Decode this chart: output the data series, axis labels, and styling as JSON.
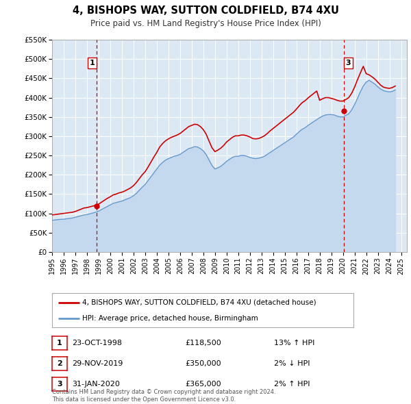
{
  "title": "4, BISHOPS WAY, SUTTON COLDFIELD, B74 4XU",
  "subtitle": "Price paid vs. HM Land Registry's House Price Index (HPI)",
  "background_color": "#ffffff",
  "plot_background_color": "#dce9f5",
  "grid_color": "#ffffff",
  "ylim": [
    0,
    550000
  ],
  "yticks": [
    0,
    50000,
    100000,
    150000,
    200000,
    250000,
    300000,
    350000,
    400000,
    450000,
    500000,
    550000
  ],
  "ytick_labels": [
    "£0",
    "£50K",
    "£100K",
    "£150K",
    "£200K",
    "£250K",
    "£300K",
    "£350K",
    "£400K",
    "£450K",
    "£500K",
    "£550K"
  ],
  "xlim_start": 1995.0,
  "xlim_end": 2025.5,
  "xticks": [
    1995,
    1996,
    1997,
    1998,
    1999,
    2000,
    2001,
    2002,
    2003,
    2004,
    2005,
    2006,
    2007,
    2008,
    2009,
    2010,
    2011,
    2012,
    2013,
    2014,
    2015,
    2016,
    2017,
    2018,
    2019,
    2020,
    2021,
    2022,
    2023,
    2024,
    2025
  ],
  "red_line_color": "#cc0000",
  "blue_line_color": "#6699cc",
  "blue_fill_color": "#c5d9ee",
  "sale_marker_color": "#cc0000",
  "dashed_line_color": "#cc0000",
  "legend_label_red": "4, BISHOPS WAY, SUTTON COLDFIELD, B74 4XU (detached house)",
  "legend_label_blue": "HPI: Average price, detached house, Birmingham",
  "sp1_year": 1998.82,
  "sp1_price": 118500,
  "sp3_year": 2020.08,
  "sp3_price": 365000,
  "table_rows": [
    {
      "num": "1",
      "date": "23-OCT-1998",
      "price": "£118,500",
      "change": "13% ↑ HPI"
    },
    {
      "num": "2",
      "date": "29-NOV-2019",
      "price": "£350,000",
      "change": "2% ↓ HPI"
    },
    {
      "num": "3",
      "date": "31-JAN-2020",
      "price": "£365,000",
      "change": "2% ↑ HPI"
    }
  ],
  "footer_line1": "Contains HM Land Registry data © Crown copyright and database right 2024.",
  "footer_line2": "This data is licensed under the Open Government Licence v3.0.",
  "hpi_years": [
    1995.0,
    1995.25,
    1995.5,
    1995.75,
    1996.0,
    1996.25,
    1996.5,
    1996.75,
    1997.0,
    1997.25,
    1997.5,
    1997.75,
    1998.0,
    1998.25,
    1998.5,
    1998.75,
    1999.0,
    1999.25,
    1999.5,
    1999.75,
    2000.0,
    2000.25,
    2000.5,
    2000.75,
    2001.0,
    2001.25,
    2001.5,
    2001.75,
    2002.0,
    2002.25,
    2002.5,
    2002.75,
    2003.0,
    2003.25,
    2003.5,
    2003.75,
    2004.0,
    2004.25,
    2004.5,
    2004.75,
    2005.0,
    2005.25,
    2005.5,
    2005.75,
    2006.0,
    2006.25,
    2006.5,
    2006.75,
    2007.0,
    2007.25,
    2007.5,
    2007.75,
    2008.0,
    2008.25,
    2008.5,
    2008.75,
    2009.0,
    2009.25,
    2009.5,
    2009.75,
    2010.0,
    2010.25,
    2010.5,
    2010.75,
    2011.0,
    2011.25,
    2011.5,
    2011.75,
    2012.0,
    2012.25,
    2012.5,
    2012.75,
    2013.0,
    2013.25,
    2013.5,
    2013.75,
    2014.0,
    2014.25,
    2014.5,
    2014.75,
    2015.0,
    2015.25,
    2015.5,
    2015.75,
    2016.0,
    2016.25,
    2016.5,
    2016.75,
    2017.0,
    2017.25,
    2017.5,
    2017.75,
    2018.0,
    2018.25,
    2018.5,
    2018.75,
    2019.0,
    2019.25,
    2019.5,
    2019.75,
    2020.0,
    2020.25,
    2020.5,
    2020.75,
    2021.0,
    2021.25,
    2021.5,
    2021.75,
    2022.0,
    2022.25,
    2022.5,
    2022.75,
    2023.0,
    2023.25,
    2023.5,
    2023.75,
    2024.0,
    2024.25,
    2024.5
  ],
  "hpi_vals": [
    82000,
    83000,
    84000,
    84500,
    85000,
    86000,
    87000,
    88000,
    90000,
    92000,
    94000,
    96000,
    97000,
    99000,
    101000,
    103000,
    106000,
    110000,
    114000,
    118000,
    122000,
    126000,
    128000,
    130000,
    132000,
    135000,
    138000,
    141000,
    146000,
    152000,
    160000,
    168000,
    175000,
    185000,
    195000,
    205000,
    215000,
    225000,
    232000,
    238000,
    242000,
    245000,
    248000,
    250000,
    253000,
    258000,
    263000,
    268000,
    270000,
    273000,
    272000,
    268000,
    262000,
    252000,
    238000,
    224000,
    215000,
    218000,
    222000,
    228000,
    235000,
    240000,
    245000,
    248000,
    248000,
    250000,
    250000,
    248000,
    245000,
    243000,
    242000,
    243000,
    245000,
    248000,
    253000,
    258000,
    263000,
    268000,
    273000,
    278000,
    283000,
    288000,
    293000,
    298000,
    305000,
    312000,
    318000,
    322000,
    328000,
    333000,
    338000,
    343000,
    348000,
    352000,
    355000,
    356000,
    356000,
    355000,
    352000,
    350000,
    350000,
    354000,
    358000,
    368000,
    382000,
    398000,
    415000,
    430000,
    440000,
    445000,
    440000,
    435000,
    428000,
    422000,
    418000,
    416000,
    415000,
    416000,
    420000
  ],
  "red_years": [
    1995.0,
    1995.25,
    1995.5,
    1995.75,
    1996.0,
    1996.25,
    1996.5,
    1996.75,
    1997.0,
    1997.25,
    1997.5,
    1997.75,
    1998.0,
    1998.25,
    1998.5,
    1998.75,
    1999.0,
    1999.25,
    1999.5,
    1999.75,
    2000.0,
    2000.25,
    2000.5,
    2000.75,
    2001.0,
    2001.25,
    2001.5,
    2001.75,
    2002.0,
    2002.25,
    2002.5,
    2002.75,
    2003.0,
    2003.25,
    2003.5,
    2003.75,
    2004.0,
    2004.25,
    2004.5,
    2004.75,
    2005.0,
    2005.25,
    2005.5,
    2005.75,
    2006.0,
    2006.25,
    2006.5,
    2006.75,
    2007.0,
    2007.25,
    2007.5,
    2007.75,
    2008.0,
    2008.25,
    2008.5,
    2008.75,
    2009.0,
    2009.25,
    2009.5,
    2009.75,
    2010.0,
    2010.25,
    2010.5,
    2010.75,
    2011.0,
    2011.25,
    2011.5,
    2011.75,
    2012.0,
    2012.25,
    2012.5,
    2012.75,
    2013.0,
    2013.25,
    2013.5,
    2013.75,
    2014.0,
    2014.25,
    2014.5,
    2014.75,
    2015.0,
    2015.25,
    2015.5,
    2015.75,
    2016.0,
    2016.25,
    2016.5,
    2016.75,
    2017.0,
    2017.25,
    2017.5,
    2017.75,
    2018.0,
    2018.25,
    2018.5,
    2018.75,
    2019.0,
    2019.25,
    2019.5,
    2019.75,
    2020.0,
    2020.25,
    2020.5,
    2020.75,
    2021.0,
    2021.25,
    2021.5,
    2021.75,
    2022.0,
    2022.25,
    2022.5,
    2022.75,
    2023.0,
    2023.25,
    2023.5,
    2023.75,
    2024.0,
    2024.25,
    2024.5
  ],
  "red_vals": [
    96000,
    97000,
    98000,
    99000,
    100000,
    101000,
    102000,
    103000,
    105000,
    108000,
    111000,
    114000,
    115000,
    117000,
    119000,
    121000,
    124000,
    129000,
    134000,
    139000,
    143000,
    148000,
    150000,
    153000,
    155000,
    158000,
    162000,
    166000,
    172000,
    180000,
    190000,
    200000,
    208000,
    220000,
    233000,
    246000,
    258000,
    272000,
    281000,
    288000,
    293000,
    297000,
    300000,
    303000,
    307000,
    313000,
    319000,
    325000,
    328000,
    331000,
    330000,
    325000,
    317000,
    305000,
    287000,
    270000,
    260000,
    264000,
    269000,
    276000,
    285000,
    291000,
    297000,
    301000,
    301000,
    303000,
    303000,
    301000,
    298000,
    294000,
    293000,
    294000,
    297000,
    301000,
    307000,
    314000,
    320000,
    326000,
    332000,
    338000,
    344000,
    350000,
    356000,
    362000,
    370000,
    379000,
    387000,
    392000,
    399000,
    405000,
    411000,
    417000,
    393000,
    397000,
    400000,
    400000,
    398000,
    396000,
    393000,
    391000,
    391000,
    395000,
    400000,
    411000,
    427000,
    446000,
    464000,
    481000,
    462000,
    459000,
    454000,
    448000,
    440000,
    432000,
    427000,
    425000,
    424000,
    426000,
    430000
  ]
}
